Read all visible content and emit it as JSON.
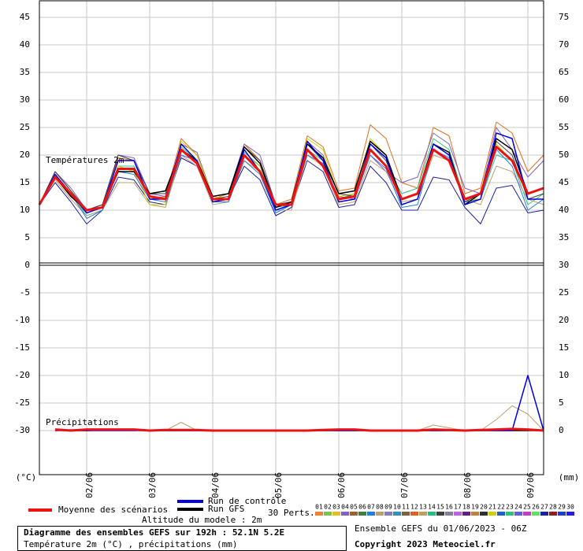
{
  "chart_data": [
    {
      "type": "line",
      "label": "Températures 2m",
      "x": [
        0,
        6,
        12,
        18,
        24,
        30,
        36,
        42,
        48,
        54,
        60,
        66,
        72,
        78,
        84,
        90,
        96,
        102,
        108,
        114,
        120,
        126,
        132,
        138,
        144,
        150,
        156,
        162,
        168,
        174,
        180,
        186,
        192
      ],
      "xlim": [
        0,
        192
      ],
      "ylim": [
        0,
        48
      ],
      "yticks": [
        0,
        5,
        10,
        15,
        20,
        25,
        30,
        35,
        40,
        45
      ],
      "y2lim": [
        30,
        78
      ],
      "y2ticks": [
        35,
        40,
        45,
        50,
        55,
        60,
        65,
        70,
        75
      ],
      "grid": true,
      "series": [
        {
          "color": "#e07020",
          "line_width": 1,
          "values": [
            11,
            17,
            13.5,
            10,
            11,
            19.5,
            19,
            12,
            12.5,
            23,
            20,
            12,
            13,
            22,
            19,
            11,
            12,
            23.5,
            21.5,
            13.5,
            14,
            25.5,
            23,
            15,
            14,
            25,
            23.5,
            13,
            14,
            26,
            24,
            17,
            20
          ]
        },
        {
          "color": "#2020a0",
          "line_width": 1,
          "values": [
            11,
            15,
            11.5,
            7.5,
            10,
            16,
            15.5,
            11.5,
            11,
            19.5,
            18,
            11.5,
            12,
            18,
            15.5,
            9,
            10.5,
            19,
            17,
            10.5,
            11,
            18,
            15,
            10,
            10,
            16,
            15.5,
            10.5,
            7.5,
            14,
            14.5,
            9.5,
            10
          ]
        },
        {
          "color": "#30c080",
          "line_width": 1,
          "values": [
            11,
            16,
            13,
            9,
            10,
            18,
            18,
            12.5,
            12,
            21.5,
            19,
            12,
            12,
            20.5,
            18,
            10.5,
            11,
            21,
            19,
            12,
            13,
            21,
            18,
            13,
            14,
            23,
            21,
            12,
            12,
            20,
            19,
            11,
            13
          ]
        },
        {
          "color": "#8060c0",
          "line_width": 1,
          "values": [
            11,
            17,
            14,
            10,
            11,
            20,
            19.5,
            13,
            12.5,
            22,
            20.5,
            12.5,
            13,
            22,
            20,
            11,
            11.5,
            22.5,
            20,
            12.5,
            12,
            20,
            17,
            15,
            16,
            24,
            22,
            14,
            13,
            25,
            21,
            16,
            19
          ]
        },
        {
          "color": "#c0a070",
          "line_width": 1,
          "values": [
            11,
            15.5,
            12,
            9,
            10,
            15,
            15,
            11,
            10.5,
            20,
            18,
            11,
            11.5,
            19,
            17,
            10,
            10,
            20,
            18,
            11,
            11.5,
            19,
            17,
            11.5,
            12,
            20,
            19,
            12,
            11,
            18,
            17,
            12,
            11
          ]
        },
        {
          "color": "#d0d000",
          "line_width": 1,
          "values": [
            11,
            16,
            12.5,
            9.5,
            10.5,
            18,
            17,
            11,
            11,
            22.5,
            20,
            12.5,
            12,
            20,
            18,
            11,
            11,
            23,
            21,
            12.5,
            13,
            23,
            20,
            11,
            12,
            22,
            20,
            12,
            12,
            22,
            19,
            13,
            14
          ]
        },
        {
          "color": "#2080e0",
          "line_width": 1,
          "values": [
            11,
            16.5,
            13,
            8.5,
            10,
            17,
            16.5,
            12,
            11.5,
            20,
            19,
            11.5,
            11.5,
            19,
            16.5,
            9.5,
            11,
            20,
            18.5,
            11.5,
            12,
            20,
            17.5,
            10.5,
            11,
            21,
            19.5,
            11.5,
            12,
            21,
            18,
            10,
            12
          ]
        },
        {
          "color": "#404040",
          "line_width": 1,
          "values": [
            11,
            17,
            13.5,
            10,
            11,
            20,
            19,
            13,
            13,
            21,
            19,
            12,
            12.5,
            21.5,
            19,
            11,
            11.5,
            22,
            19,
            13,
            12.5,
            22,
            19,
            12,
            13,
            22,
            20.5,
            11.5,
            13,
            22.5,
            20,
            12,
            13
          ]
        },
        {
          "name": "Run GFS",
          "color": "#000000",
          "line_width": 1.5,
          "values": [
            11,
            16,
            12.5,
            10,
            10.5,
            17,
            17,
            13,
            13.5,
            21,
            19,
            12.5,
            13,
            21.5,
            18.5,
            10.5,
            11.5,
            22,
            19.5,
            13,
            13.5,
            22.5,
            20,
            12,
            13,
            22,
            20.5,
            11,
            13,
            23,
            21,
            13,
            14
          ]
        },
        {
          "name": "Run de contrôle",
          "color": "#0000e0",
          "line_width": 1.5,
          "values": [
            11,
            16.5,
            13,
            9.5,
            10.5,
            19,
            19,
            12,
            12,
            22,
            19,
            11.5,
            12,
            21,
            17,
            10,
            11,
            22.5,
            19,
            11.5,
            12,
            22,
            19.5,
            11,
            12,
            22,
            20,
            11,
            12,
            24,
            23,
            12,
            12
          ]
        },
        {
          "name": "Moyenne des scénarios",
          "color": "#ee1111",
          "line_width": 3,
          "values": [
            11,
            16,
            13,
            10,
            10.5,
            17.5,
            17.5,
            12.5,
            12,
            21,
            18.5,
            12,
            12,
            20,
            17,
            11,
            11,
            21,
            18,
            12,
            12.5,
            21,
            18,
            12,
            13,
            21,
            19,
            12,
            13,
            21.5,
            19,
            13,
            14
          ]
        }
      ]
    },
    {
      "type": "line",
      "label": "Précipitations",
      "ylabel": "(°C)",
      "y2label": "(mm)",
      "x": [
        0,
        6,
        12,
        18,
        24,
        30,
        36,
        42,
        48,
        54,
        60,
        66,
        72,
        78,
        84,
        90,
        96,
        102,
        108,
        114,
        120,
        126,
        132,
        138,
        144,
        150,
        156,
        162,
        168,
        174,
        180,
        186,
        192
      ],
      "xlim": [
        0,
        192
      ],
      "xticks": [
        {
          "value": 18,
          "label": "02/06"
        },
        {
          "value": 42,
          "label": "03/06"
        },
        {
          "value": 66,
          "label": "04/06"
        },
        {
          "value": 90,
          "label": "05/06"
        },
        {
          "value": 114,
          "label": "06/06"
        },
        {
          "value": 138,
          "label": "07/06"
        },
        {
          "value": 162,
          "label": "08/06"
        },
        {
          "value": 186,
          "label": "09/06"
        }
      ],
      "ylim": [
        -38,
        0
      ],
      "yticks": [
        -5,
        -10,
        -15,
        -20,
        -25,
        -30
      ],
      "y2lim": [
        -8,
        30
      ],
      "y2ticks": [
        30,
        25,
        20,
        15,
        10,
        5,
        0
      ],
      "grid": true,
      "series": [
        {
          "axis": "y2",
          "color": "#c0a070",
          "line_width": 1,
          "values": [
            null,
            0,
            0.2,
            0,
            0,
            0.3,
            0,
            0,
            0,
            1.5,
            0,
            0,
            0,
            0,
            0,
            0,
            0,
            0,
            0,
            0,
            0,
            0,
            0,
            0,
            0,
            1,
            0.5,
            0,
            0,
            2,
            4.5,
            3,
            0
          ]
        },
        {
          "axis": "y2",
          "color": "#000000",
          "line_width": 1.5,
          "values": [
            null,
            0.1,
            0,
            0,
            0.1,
            0.1,
            0.1,
            0,
            0,
            0,
            0,
            0,
            0,
            0,
            0,
            0,
            0,
            0,
            0,
            0,
            0,
            0,
            0,
            0,
            0,
            0,
            0,
            0,
            0,
            0,
            0,
            0,
            0
          ]
        },
        {
          "axis": "y2",
          "color": "#0000e0",
          "line_width": 1.5,
          "values": [
            null,
            0,
            0,
            0,
            0,
            0,
            0,
            0,
            0,
            0,
            0,
            0,
            0,
            0,
            0,
            0,
            0,
            0,
            0,
            0,
            0,
            0,
            0,
            0,
            0,
            0,
            0,
            0,
            0,
            0,
            0,
            10,
            0
          ]
        },
        {
          "axis": "y2",
          "color": "#ee1111",
          "line_width": 3,
          "values": [
            null,
            0.2,
            0,
            0.2,
            0.2,
            0.2,
            0.2,
            0,
            0.1,
            0.1,
            0.1,
            0,
            0,
            0,
            0,
            0,
            0,
            0,
            0.1,
            0.2,
            0.2,
            0,
            0,
            0,
            0,
            0.2,
            0.1,
            0,
            0.1,
            0.2,
            0.3,
            0.2,
            0
          ]
        }
      ]
    }
  ],
  "legend": {
    "perts_label": "30 Perts.",
    "altitude": "Altitude du modele : 2m",
    "perturbations": [
      {
        "label": "01",
        "color": "#f08030"
      },
      {
        "label": "02",
        "color": "#80c050"
      },
      {
        "label": "03",
        "color": "#e0c020"
      },
      {
        "label": "04",
        "color": "#8060c0"
      },
      {
        "label": "05",
        "color": "#a06030"
      },
      {
        "label": "06",
        "color": "#408040"
      },
      {
        "label": "07",
        "color": "#2080e0"
      },
      {
        "label": "08",
        "color": "#c0a070"
      },
      {
        "label": "09",
        "color": "#8080c0"
      },
      {
        "label": "10",
        "color": "#3090c0"
      },
      {
        "label": "11",
        "color": "#806040"
      },
      {
        "label": "12",
        "color": "#e06020"
      },
      {
        "label": "13",
        "color": "#c0a060"
      },
      {
        "label": "14",
        "color": "#20c080"
      },
      {
        "label": "15",
        "color": "#404040"
      },
      {
        "label": "16",
        "color": "#8080a0"
      },
      {
        "label": "17",
        "color": "#c060e0"
      },
      {
        "label": "18",
        "color": "#602080"
      },
      {
        "label": "19",
        "color": "#c08040"
      },
      {
        "label": "20",
        "color": "#303030"
      },
      {
        "label": "21",
        "color": "#d0d000"
      },
      {
        "label": "22",
        "color": "#2060c0"
      },
      {
        "label": "23",
        "color": "#30c080"
      },
      {
        "label": "24",
        "color": "#6060e0"
      },
      {
        "label": "25",
        "color": "#c040c0"
      },
      {
        "label": "26",
        "color": "#60e060"
      },
      {
        "label": "27",
        "color": "#2020a0"
      },
      {
        "label": "28",
        "color": "#902020"
      },
      {
        "label": "29",
        "color": "#2040c0"
      },
      {
        "label": "30",
        "color": "#2020e0"
      }
    ]
  },
  "footer": {
    "box_title": "Diagramme des ensembles GEFS sur 192h : 52.1N 5.2E",
    "box_subtitle": "Température 2m (°C) , précipitations (mm)",
    "run": "Ensemble GEFS du 01/06/2023 - 06Z",
    "copyright": "Copyright 2023 Meteociel.fr"
  }
}
